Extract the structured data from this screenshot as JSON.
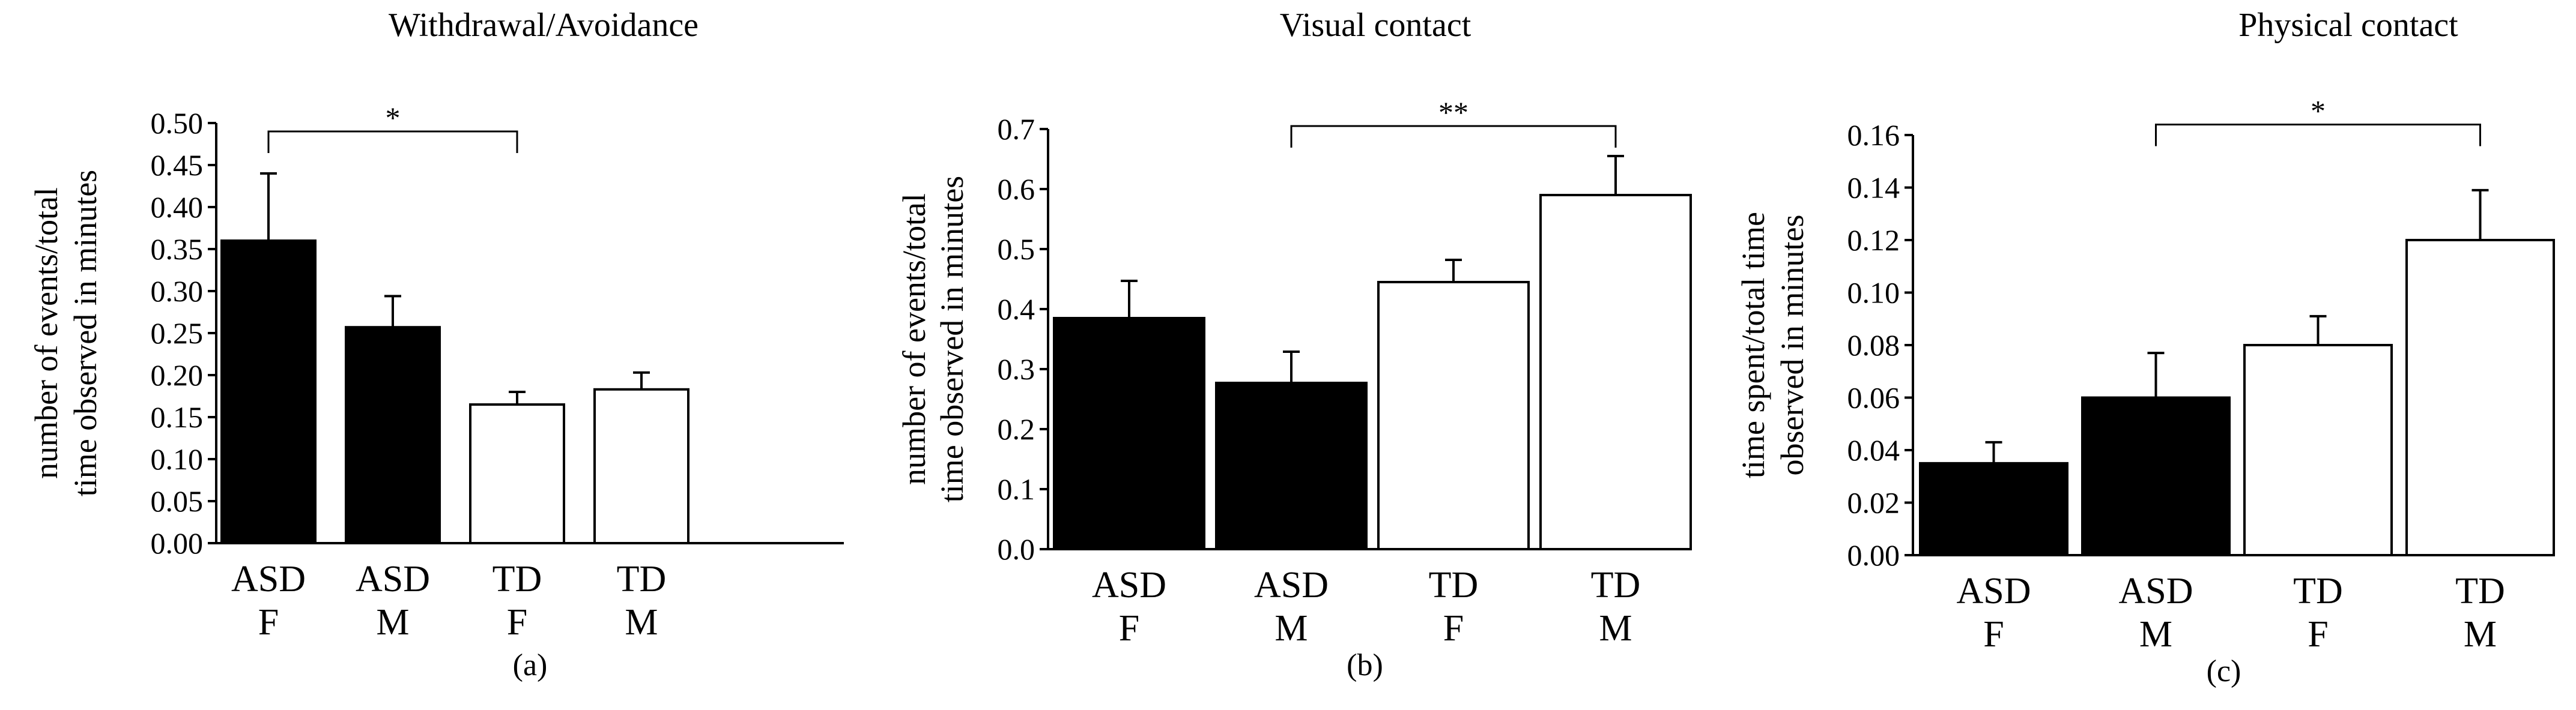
{
  "chart_data": [
    {
      "type": "bar",
      "title": "Withdrawal/Avoidance",
      "ylabel_lines": [
        "number of events/total",
        "time observed  in minutes"
      ],
      "categories": [
        [
          "ASD",
          "F"
        ],
        [
          "ASD",
          "M"
        ],
        [
          "TD",
          "F"
        ],
        [
          "TD",
          "M"
        ]
      ],
      "values": [
        0.36,
        0.257,
        0.165,
        0.183
      ],
      "errors": [
        0.08,
        0.037,
        0.015,
        0.02
      ],
      "bar_fills": [
        "#000000",
        "#000000",
        "#ffffff",
        "#ffffff"
      ],
      "ylim": [
        0,
        0.5
      ],
      "yticks": [
        0.0,
        0.05,
        0.1,
        0.15,
        0.2,
        0.25,
        0.3,
        0.35,
        0.4,
        0.45,
        0.5
      ],
      "ytick_labels": [
        "0.00",
        "0.05",
        "0.10",
        "0.15",
        "0.20",
        "0.25",
        "0.30",
        "0.35",
        "0.40",
        "0.45",
        "0.50"
      ],
      "significance": {
        "from": 0,
        "to": 2,
        "label": "*",
        "y": 0.49
      },
      "panel_label": "(a)"
    },
    {
      "type": "bar",
      "title": "Visual contact",
      "ylabel_lines": [
        "number of events/total",
        "time observed  in minutes"
      ],
      "categories": [
        [
          "ASD",
          "F"
        ],
        [
          "ASD",
          "M"
        ],
        [
          "TD",
          "F"
        ],
        [
          "TD",
          "M"
        ]
      ],
      "values": [
        0.385,
        0.277,
        0.445,
        0.59
      ],
      "errors": [
        0.062,
        0.052,
        0.037,
        0.065
      ],
      "bar_fills": [
        "#000000",
        "#000000",
        "#ffffff",
        "#ffffff"
      ],
      "ylim": [
        0,
        0.7
      ],
      "yticks": [
        0.0,
        0.1,
        0.2,
        0.3,
        0.4,
        0.5,
        0.6,
        0.7
      ],
      "ytick_labels": [
        "0.0",
        "0.1",
        "0.2",
        "0.3",
        "0.4",
        "0.5",
        "0.6",
        "0.7"
      ],
      "significance": {
        "from": 1,
        "to": 3,
        "label": "**",
        "y": 0.705
      },
      "panel_label": "(b)"
    },
    {
      "type": "bar",
      "title": "Physical contact",
      "ylabel_lines": [
        "time spent/total  time",
        "observed in minutes"
      ],
      "categories": [
        [
          "ASD",
          "F"
        ],
        [
          "ASD",
          "M"
        ],
        [
          "TD",
          "F"
        ],
        [
          "TD",
          "M"
        ]
      ],
      "values": [
        0.035,
        0.06,
        0.08,
        0.12
      ],
      "errors": [
        0.008,
        0.017,
        0.011,
        0.019
      ],
      "bar_fills": [
        "#000000",
        "#000000",
        "#ffffff",
        "#ffffff"
      ],
      "ylim": [
        0,
        0.16
      ],
      "yticks": [
        0.0,
        0.02,
        0.04,
        0.06,
        0.08,
        0.1,
        0.12,
        0.14,
        0.16
      ],
      "ytick_labels": [
        "0.00",
        "0.02",
        "0.04",
        "0.06",
        "0.08",
        "0.10",
        "0.12",
        "0.14",
        "0.16"
      ],
      "significance": {
        "from": 1,
        "to": 3,
        "label": "*",
        "y": 0.164
      },
      "panel_label": "(c)"
    }
  ]
}
